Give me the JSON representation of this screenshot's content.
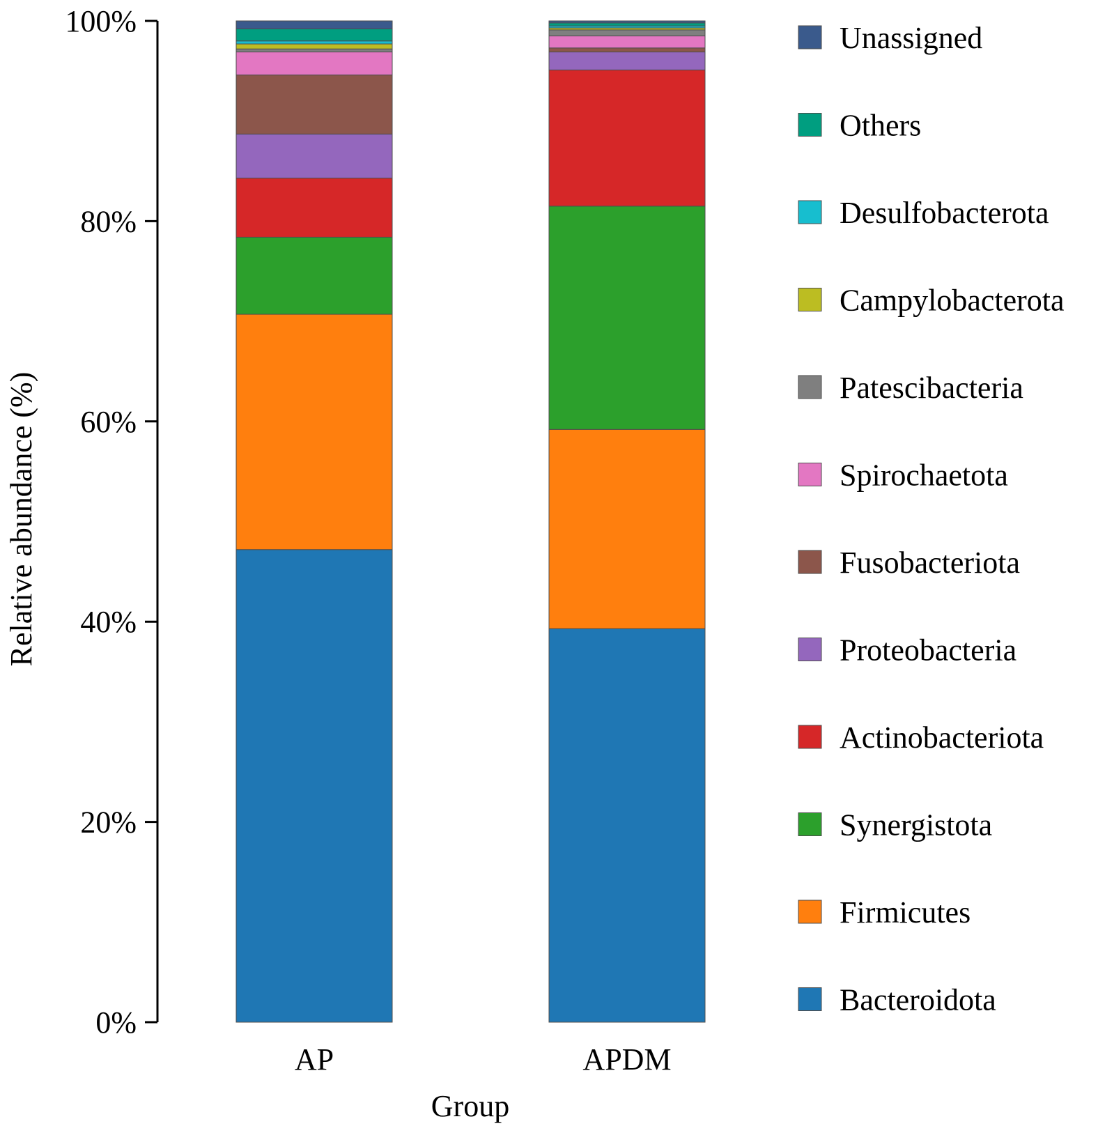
{
  "chart_data": {
    "type": "bar",
    "stacked": true,
    "title": "",
    "xlabel": "Group",
    "ylabel": "Relative abundance (%)",
    "ylim": [
      0,
      100
    ],
    "yticks": [
      "0%",
      "20%",
      "40%",
      "60%",
      "80%",
      "100%"
    ],
    "ytick_values": [
      0,
      20,
      40,
      60,
      80,
      100
    ],
    "categories": [
      "AP",
      "APDM"
    ],
    "legend_position": "right",
    "series": [
      {
        "name": "Bacteroidota",
        "color": "#1f77b4",
        "values": [
          47.2,
          39.3
        ]
      },
      {
        "name": "Firmicutes",
        "color": "#ff7f0e",
        "values": [
          23.5,
          19.9
        ]
      },
      {
        "name": "Synergistota",
        "color": "#2ca02c",
        "values": [
          7.7,
          22.3
        ]
      },
      {
        "name": "Actinobacteriota",
        "color": "#d62728",
        "values": [
          5.9,
          13.6
        ]
      },
      {
        "name": "Proteobacteria",
        "color": "#9467bd",
        "values": [
          4.4,
          1.8
        ]
      },
      {
        "name": "Fusobacteriota",
        "color": "#8c564b",
        "values": [
          5.9,
          0.4
        ]
      },
      {
        "name": "Spirochaetota",
        "color": "#e377c2",
        "values": [
          2.3,
          1.2
        ]
      },
      {
        "name": "Patescibacteria",
        "color": "#7f7f7f",
        "values": [
          0.3,
          0.6
        ]
      },
      {
        "name": "Campylobacterota",
        "color": "#bcbd22",
        "values": [
          0.5,
          0.2
        ]
      },
      {
        "name": "Desulfobacterota",
        "color": "#17becf",
        "values": [
          0.3,
          0.2
        ]
      },
      {
        "name": "Others",
        "color": "#009e80",
        "values": [
          1.2,
          0.3
        ]
      },
      {
        "name": "Unassigned",
        "color": "#3a5a8c",
        "values": [
          0.8,
          0.2
        ]
      }
    ]
  }
}
